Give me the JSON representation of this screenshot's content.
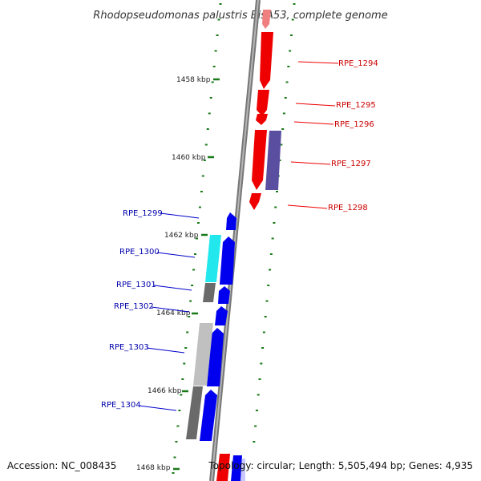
{
  "title": "Rhodopseudomonas palustris BisA53, complete genome",
  "accession": "Accession: NC_008435",
  "topology": "Topology: circular; Length: 5,505,494 bp; Genes: 4,935",
  "colors": {
    "forward": "#ee0000",
    "reverse": "#0000ee",
    "backbone": "#888888",
    "ticks": "#1a7a1a",
    "cyan": "#22e8ee",
    "purple": "#5a4ea0",
    "gray_light": "#c0c0c0",
    "gray_dark": "#6a6a6a"
  },
  "scale_labels": [
    "1458 kbp",
    "1460 kbp",
    "1462 kbp",
    "1464 kbp",
    "1466 kbp",
    "1468 kbp"
  ],
  "genes": [
    {
      "id": "RPE_1294",
      "strand": "forward",
      "color": "#ee0000"
    },
    {
      "id": "RPE_1295",
      "strand": "forward",
      "color": "#ee0000"
    },
    {
      "id": "RPE_1296",
      "strand": "forward",
      "color": "#ee0000"
    },
    {
      "id": "RPE_1297",
      "strand": "forward",
      "color": "#ee0000"
    },
    {
      "id": "RPE_1298",
      "strand": "forward",
      "color": "#ee0000"
    },
    {
      "id": "RPE_1299",
      "strand": "reverse",
      "color": "#0000ee"
    },
    {
      "id": "RPE_1300",
      "strand": "reverse",
      "color": "#0000ee"
    },
    {
      "id": "RPE_1301",
      "strand": "reverse",
      "color": "#0000ee"
    },
    {
      "id": "RPE_1302",
      "strand": "reverse",
      "color": "#0000ee"
    },
    {
      "id": "RPE_1303",
      "strand": "reverse",
      "color": "#0000ee"
    },
    {
      "id": "RPE_1304",
      "strand": "reverse",
      "color": "#0000ee"
    }
  ]
}
